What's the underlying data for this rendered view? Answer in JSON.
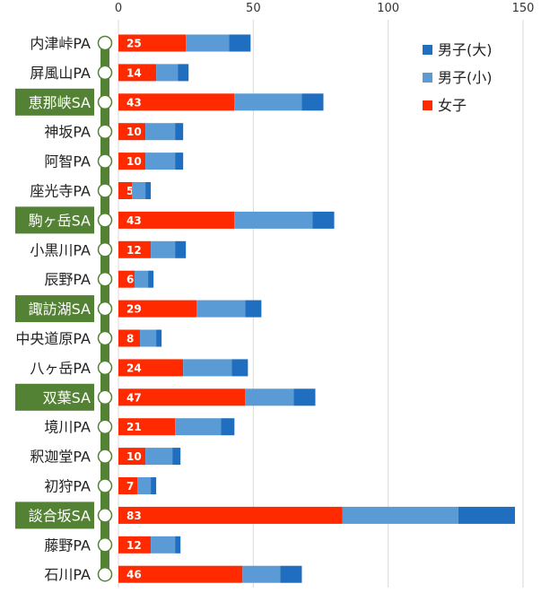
{
  "chart_data": {
    "type": "bar",
    "orientation": "horizontal",
    "stacked": true,
    "xlim": [
      0,
      150
    ],
    "x_ticks": [
      0,
      50,
      100,
      150
    ],
    "gridlines": true,
    "legend_position": "top-right",
    "categories": [
      {
        "name": "内津峠PA",
        "sa": false
      },
      {
        "name": "屏風山PA",
        "sa": false
      },
      {
        "name": "恵那峡SA",
        "sa": true
      },
      {
        "name": "神坂PA",
        "sa": false
      },
      {
        "name": "阿智PA",
        "sa": false
      },
      {
        "name": "座光寺PA",
        "sa": false
      },
      {
        "name": "駒ヶ岳SA",
        "sa": true
      },
      {
        "name": "小黒川PA",
        "sa": false
      },
      {
        "name": "辰野PA",
        "sa": false
      },
      {
        "name": "諏訪湖SA",
        "sa": true
      },
      {
        "name": "中央道原PA",
        "sa": false
      },
      {
        "name": "八ヶ岳PA",
        "sa": false
      },
      {
        "name": "双葉SA",
        "sa": true
      },
      {
        "name": "境川PA",
        "sa": false
      },
      {
        "name": "釈迦堂PA",
        "sa": false
      },
      {
        "name": "初狩PA",
        "sa": false
      },
      {
        "name": "談合坂SA",
        "sa": true
      },
      {
        "name": "藤野PA",
        "sa": false
      },
      {
        "name": "石川PA",
        "sa": false
      }
    ],
    "series": [
      {
        "name": "女子",
        "color": "#ff2a00",
        "show_labels": true,
        "values": [
          25,
          14,
          43,
          10,
          10,
          5,
          43,
          12,
          6,
          29,
          8,
          24,
          47,
          21,
          10,
          7,
          83,
          12,
          46
        ]
      },
      {
        "name": "男子(小)",
        "color": "#5b9bd5",
        "show_labels": false,
        "values": [
          16,
          8,
          25,
          11,
          11,
          5,
          29,
          9,
          5,
          18,
          6,
          18,
          18,
          17,
          10,
          5,
          43,
          9,
          14
        ]
      },
      {
        "name": "男子(大)",
        "color": "#1f6ebf",
        "show_labels": false,
        "values": [
          8,
          4,
          8,
          3,
          3,
          2,
          8,
          4,
          2,
          6,
          2,
          6,
          8,
          5,
          3,
          2,
          21,
          2,
          8
        ]
      }
    ],
    "legend_order": [
      "男子(大)",
      "男子(小)",
      "女子"
    ],
    "colors": {
      "route_line": "#548235",
      "sa_label_bg": "#548235",
      "sa_label_text": "#ffffff",
      "pa_label_text": "#222222",
      "grid": "#d9d9d9"
    }
  }
}
